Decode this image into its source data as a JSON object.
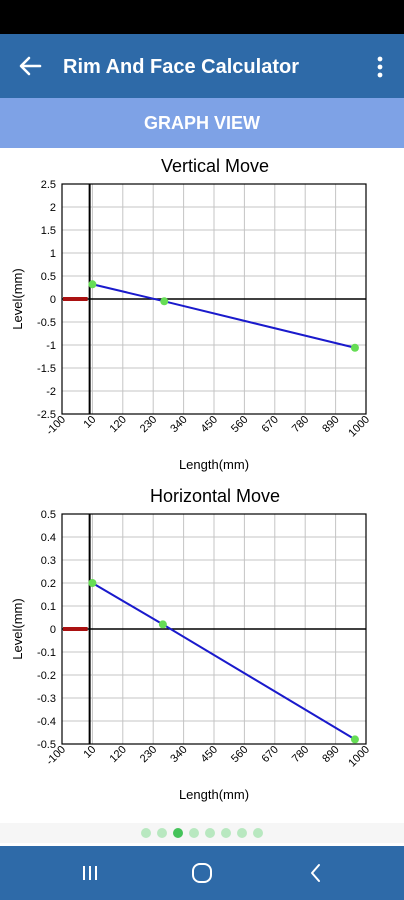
{
  "app_bar": {
    "title": "Rim And Face Calculator",
    "back_icon": "arrow-left-icon",
    "menu_icon": "more-vert-icon"
  },
  "section": {
    "title": "GRAPH VIEW"
  },
  "colors": {
    "app_bar": "#2e6aa8",
    "banner": "#7ea2e6",
    "line": "#1a1acc",
    "point": "#66dd55",
    "marker": "#aa1111"
  },
  "chart_data": [
    {
      "type": "line",
      "title": "Vertical  Move",
      "xlabel": "Length(mm)",
      "ylabel": "Level(mm)",
      "xlim": [
        -100,
        1000
      ],
      "ylim": [
        -2.5,
        2.5
      ],
      "x_ticks": [
        "-100",
        "10",
        "120",
        "230",
        "340",
        "450",
        "560",
        "670",
        "780",
        "890",
        "1000"
      ],
      "y_ticks": [
        "2.5",
        "2",
        "1.5",
        "1",
        "0.5",
        "0",
        "-0.5",
        "-1",
        "-1.5",
        "-2",
        "-2.5"
      ],
      "grid": true,
      "series": [
        {
          "x": [
            10,
            270,
            960
          ],
          "y": [
            0.32,
            -0.05,
            -1.06
          ]
        }
      ],
      "marker_segment": {
        "x": [
          -100,
          0
        ],
        "y": 0
      }
    },
    {
      "type": "line",
      "title": "Horizontal Move",
      "xlabel": "Length(mm)",
      "ylabel": "Level(mm)",
      "xlim": [
        -100,
        1000
      ],
      "ylim": [
        -0.5,
        0.5
      ],
      "x_ticks": [
        "-100",
        "10",
        "120",
        "230",
        "340",
        "450",
        "560",
        "670",
        "780",
        "890",
        "1000"
      ],
      "y_ticks": [
        "0.5",
        "0.4",
        "0.3",
        "0.2",
        "0.1",
        "0",
        "-0.1",
        "-0.2",
        "-0.3",
        "-0.4",
        "-0.5"
      ],
      "grid": true,
      "series": [
        {
          "x": [
            10,
            265,
            960
          ],
          "y": [
            0.2,
            0.02,
            -0.48
          ]
        }
      ],
      "marker_segment": {
        "x": [
          -100,
          0
        ],
        "y": 0
      }
    }
  ],
  "pager": {
    "count": 8,
    "active": 2
  },
  "nav": {
    "recents_icon": "recent-apps-icon",
    "home_icon": "home-circle-icon",
    "back_icon": "nav-back-icon"
  }
}
